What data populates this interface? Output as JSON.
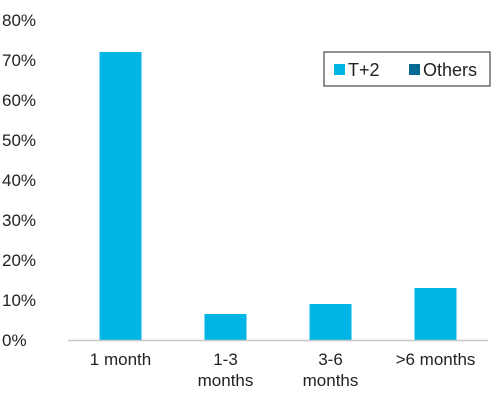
{
  "chart_data": {
    "type": "bar",
    "title": "",
    "xlabel": "",
    "ylabel": "",
    "categories": [
      [
        "1 month"
      ],
      [
        "1-3",
        "months"
      ],
      [
        "3-6",
        "months"
      ],
      [
        ">6 months"
      ]
    ],
    "series": [
      {
        "name": "T+2",
        "color": "#00b4e4",
        "values": [
          72,
          6.5,
          9,
          13
        ]
      },
      {
        "name": "Others",
        "color": "#036a93",
        "values": [
          0,
          0,
          0,
          0
        ]
      }
    ],
    "ylim": [
      0,
      80
    ],
    "yticks": [
      0,
      10,
      20,
      30,
      40,
      50,
      60,
      70,
      80
    ],
    "ytick_format": "percent",
    "grid": false,
    "legend_position": "top-right"
  }
}
